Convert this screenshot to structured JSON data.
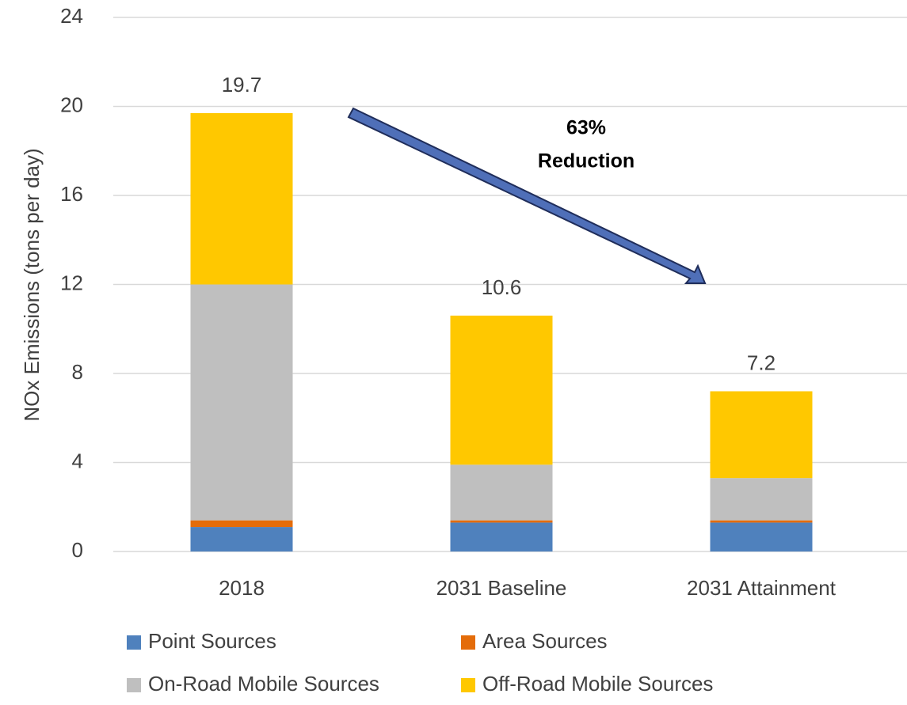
{
  "chart_data": {
    "type": "stacked_bar",
    "ylabel": "NOx Emissions (tons per day)",
    "categories": [
      "2018",
      "2031 Baseline",
      "2031 Attainment"
    ],
    "series": [
      {
        "name": "Point Sources",
        "color": "#4f81bd",
        "values": [
          1.1,
          1.3,
          1.3
        ]
      },
      {
        "name": "Area Sources",
        "color": "#e46c0a",
        "values": [
          0.3,
          0.1,
          0.1
        ]
      },
      {
        "name": "On-Road Mobile Sources",
        "color": "#bfbfbf",
        "values": [
          10.6,
          2.5,
          1.9
        ]
      },
      {
        "name": "Off-Road Mobile Sources",
        "color": "#ffc800",
        "values": [
          7.7,
          6.7,
          3.9
        ]
      }
    ],
    "totals": [
      19.7,
      10.6,
      7.2
    ],
    "annotation": [
      "63%",
      "Reduction"
    ],
    "ylim": [
      0,
      24
    ],
    "yticks": [
      0,
      4,
      8,
      12,
      16,
      20,
      24
    ],
    "grid": true
  }
}
